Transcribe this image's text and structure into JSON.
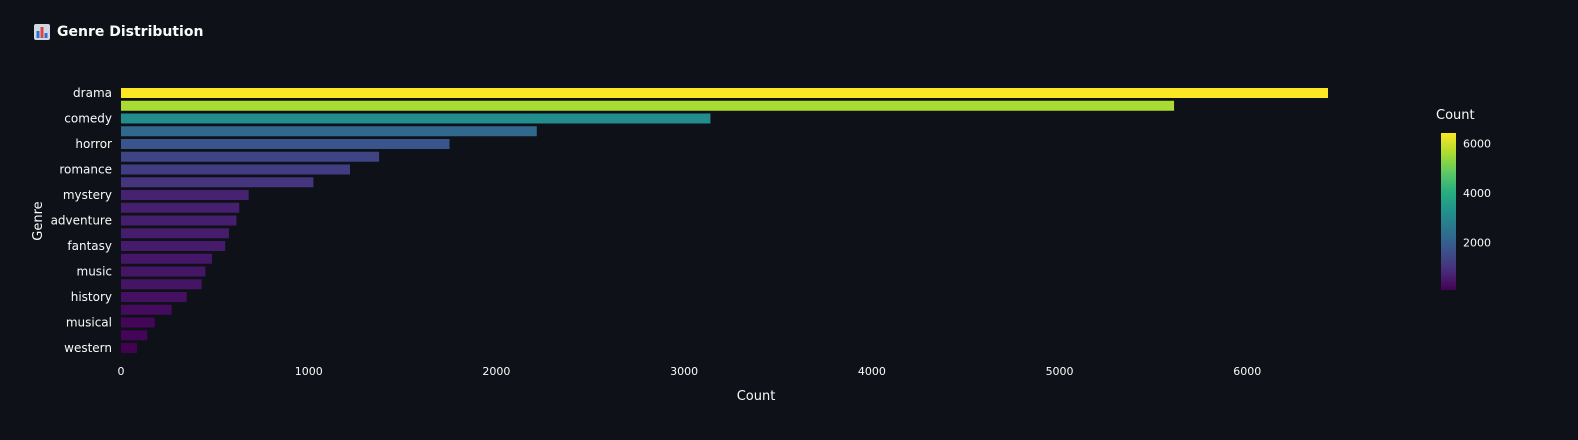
{
  "header": {
    "icon": "bar-chart-icon",
    "title": "Genre Distribution"
  },
  "chart_data": {
    "type": "bar",
    "orientation": "horizontal",
    "title": "Genre Distribution",
    "xlabel": "Count",
    "ylabel": "Genre",
    "xlim": [
      0,
      6500
    ],
    "x_ticks": [
      0,
      1000,
      2000,
      3000,
      4000,
      5000,
      6000
    ],
    "categories": [
      "drama",
      "",
      "comedy",
      "",
      "horror",
      "",
      "romance",
      "",
      "mystery",
      "",
      "adventure",
      "",
      "fantasy",
      "",
      "music",
      "",
      "history",
      "",
      "musical",
      "",
      "western"
    ],
    "values": [
      6430,
      5610,
      3140,
      2215,
      1750,
      1375,
      1220,
      1025,
      680,
      630,
      615,
      575,
      555,
      485,
      450,
      430,
      350,
      270,
      180,
      140,
      85
    ],
    "colorscale": "viridis",
    "colorbar": {
      "title": "Count",
      "ticks": [
        2000,
        4000,
        6000
      ],
      "range": [
        85,
        6430
      ]
    },
    "grid": false
  }
}
